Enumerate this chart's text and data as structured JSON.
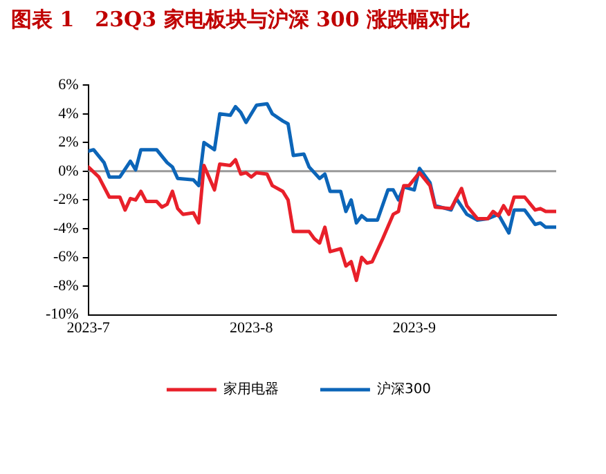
{
  "chart_data": {
    "type": "line",
    "title": "图表 1　23Q3 家电板块与沪深 300 涨跌幅对比",
    "xlim": [
      "2023-07-01",
      "2023-09-28"
    ],
    "xticks": [
      {
        "value": "2023-07-01",
        "label": "2023-7"
      },
      {
        "value": "2023-08-01",
        "label": "2023-8"
      },
      {
        "value": "2023-09-01",
        "label": "2023-9"
      }
    ],
    "ylim": [
      -10,
      6
    ],
    "yticks": [
      {
        "value": -10,
        "label": "-10%"
      },
      {
        "value": -8,
        "label": "-8%"
      },
      {
        "value": -6,
        "label": "-6%"
      },
      {
        "value": -4,
        "label": "-4%"
      },
      {
        "value": -2,
        "label": "-2%"
      },
      {
        "value": 0,
        "label": "0%"
      },
      {
        "value": 2,
        "label": "2%"
      },
      {
        "value": 4,
        "label": "4%"
      },
      {
        "value": 6,
        "label": "6%"
      }
    ],
    "grid": false,
    "legend": "bottom",
    "marker": "none",
    "line_style": "solid",
    "ref_lines": [
      {
        "axis": "y",
        "value": 0,
        "color": "#999999"
      }
    ],
    "series": [
      {
        "name": "家用电器",
        "color": "#e8202a",
        "x": [
          "2023-07-01",
          "2023-07-03",
          "2023-07-05",
          "2023-07-07",
          "2023-07-08",
          "2023-07-09",
          "2023-07-10",
          "2023-07-11",
          "2023-07-12",
          "2023-07-14",
          "2023-07-15",
          "2023-07-16",
          "2023-07-17",
          "2023-07-18",
          "2023-07-19",
          "2023-07-21",
          "2023-07-22",
          "2023-07-23",
          "2023-07-25",
          "2023-07-26",
          "2023-07-28",
          "2023-07-29",
          "2023-07-30",
          "2023-07-31",
          "2023-08-01",
          "2023-08-02",
          "2023-08-04",
          "2023-08-05",
          "2023-08-07",
          "2023-08-08",
          "2023-08-09",
          "2023-08-12",
          "2023-08-13",
          "2023-08-14",
          "2023-08-15",
          "2023-08-16",
          "2023-08-18",
          "2023-08-19",
          "2023-08-20",
          "2023-08-21",
          "2023-08-22",
          "2023-08-23",
          "2023-08-24",
          "2023-08-26",
          "2023-08-28",
          "2023-08-29",
          "2023-08-30",
          "2023-08-31",
          "2023-09-02",
          "2023-09-04",
          "2023-09-05",
          "2023-09-08",
          "2023-09-10",
          "2023-09-11",
          "2023-09-13",
          "2023-09-15",
          "2023-09-16",
          "2023-09-17",
          "2023-09-18",
          "2023-09-19",
          "2023-09-20",
          "2023-09-22",
          "2023-09-24",
          "2023-09-25",
          "2023-09-26",
          "2023-09-28"
        ],
        "values": [
          0.3,
          -0.4,
          -1.8,
          -1.8,
          -2.7,
          -1.9,
          -2.0,
          -1.4,
          -2.1,
          -2.1,
          -2.5,
          -2.3,
          -1.4,
          -2.6,
          -3.0,
          -2.9,
          -3.6,
          0.4,
          -1.3,
          0.5,
          0.4,
          0.8,
          -0.2,
          -0.1,
          -0.4,
          -0.1,
          -0.2,
          -1.0,
          -1.4,
          -2.0,
          -4.2,
          -4.2,
          -4.7,
          -5.0,
          -3.9,
          -5.6,
          -5.4,
          -6.6,
          -6.3,
          -7.6,
          -6.0,
          -6.4,
          -6.3,
          -4.7,
          -3.0,
          -2.8,
          -1.0,
          -1.0,
          -0.1,
          -1.0,
          -2.5,
          -2.6,
          -1.2,
          -2.4,
          -3.3,
          -3.3,
          -2.8,
          -3.1,
          -2.4,
          -3.0,
          -1.8,
          -1.8,
          -2.7,
          -2.6,
          -2.8,
          -2.8
        ]
      },
      {
        "name": "沪深300",
        "color": "#0c65b8",
        "x": [
          "2023-07-01",
          "2023-07-02",
          "2023-07-04",
          "2023-07-05",
          "2023-07-07",
          "2023-07-09",
          "2023-07-10",
          "2023-07-11",
          "2023-07-14",
          "2023-07-16",
          "2023-07-17",
          "2023-07-18",
          "2023-07-21",
          "2023-07-22",
          "2023-07-23",
          "2023-07-25",
          "2023-07-26",
          "2023-07-28",
          "2023-07-29",
          "2023-07-30",
          "2023-07-31",
          "2023-08-02",
          "2023-08-04",
          "2023-08-05",
          "2023-08-07",
          "2023-08-08",
          "2023-08-09",
          "2023-08-11",
          "2023-08-12",
          "2023-08-14",
          "2023-08-15",
          "2023-08-16",
          "2023-08-18",
          "2023-08-19",
          "2023-08-20",
          "2023-08-21",
          "2023-08-22",
          "2023-08-23",
          "2023-08-25",
          "2023-08-27",
          "2023-08-28",
          "2023-08-29",
          "2023-08-30",
          "2023-09-01",
          "2023-09-02",
          "2023-09-04",
          "2023-09-05",
          "2023-09-08",
          "2023-09-09",
          "2023-09-11",
          "2023-09-13",
          "2023-09-15",
          "2023-09-17",
          "2023-09-19",
          "2023-09-20",
          "2023-09-22",
          "2023-09-24",
          "2023-09-25",
          "2023-09-26",
          "2023-09-28"
        ],
        "values": [
          1.4,
          1.5,
          0.6,
          -0.4,
          -0.4,
          0.7,
          0.1,
          1.5,
          1.5,
          0.6,
          0.3,
          -0.5,
          -0.6,
          -1.0,
          2.0,
          1.5,
          4.0,
          3.9,
          4.5,
          4.1,
          3.4,
          4.6,
          4.7,
          4.0,
          3.5,
          3.3,
          1.1,
          1.2,
          0.3,
          -0.5,
          -0.2,
          -1.4,
          -1.4,
          -2.8,
          -2.0,
          -3.6,
          -3.1,
          -3.4,
          -3.4,
          -1.3,
          -1.3,
          -2.0,
          -1.1,
          -1.3,
          0.2,
          -0.8,
          -2.4,
          -2.7,
          -1.9,
          -3.0,
          -3.4,
          -3.3,
          -3.0,
          -4.3,
          -2.7,
          -2.7,
          -3.7,
          -3.6,
          -3.9,
          -3.9
        ]
      }
    ]
  }
}
